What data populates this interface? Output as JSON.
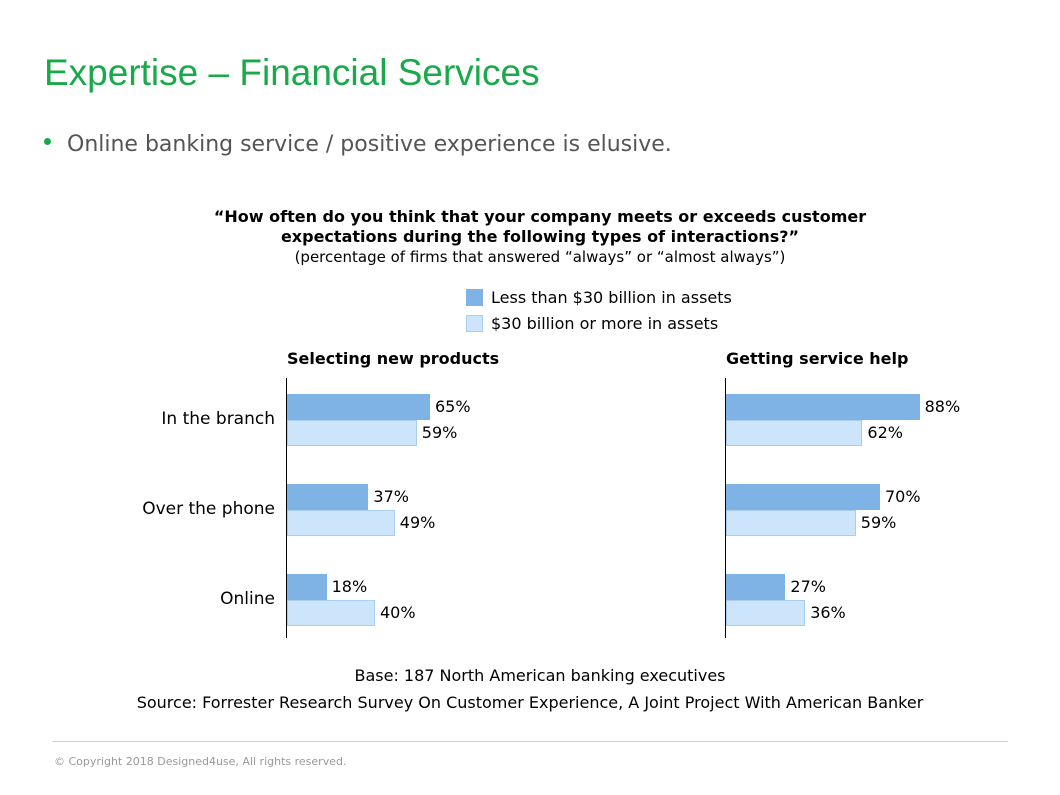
{
  "slide": {
    "title": "Expertise – Financial Services",
    "bullet": "Online banking service / positive experience is elusive."
  },
  "colors": {
    "title_green": "#1aa94a",
    "series_small": "#7fb2e5",
    "series_large": "#cce5fb",
    "series_large_border": "#a9cdee"
  },
  "chart_data": {
    "type": "bar",
    "orientation": "horizontal",
    "title_lines": [
      "“How often do you think that your company meets or exceeds customer",
      "expectations during the following types of interactions?”"
    ],
    "subtitle": "(percentage of firms that answered “always” or “almost always”)",
    "unit": "%",
    "legend": [
      "Less than $30 billion in assets",
      "$30 billion or more in assets"
    ],
    "legend_placement": "top-center",
    "categories": [
      "In the branch",
      "Over the phone",
      "Online"
    ],
    "xlim": [
      0,
      100
    ],
    "panels": [
      {
        "title": "Selecting new products",
        "series": [
          {
            "name": "Less than $30 billion in assets",
            "values": [
              65,
              37,
              18
            ]
          },
          {
            "name": "$30 billion or more in assets",
            "values": [
              59,
              49,
              40
            ]
          }
        ]
      },
      {
        "title": "Getting service help",
        "series": [
          {
            "name": "Less than $30 billion in assets",
            "values": [
              88,
              70,
              27
            ]
          },
          {
            "name": "$30 billion or more in assets",
            "values": [
              62,
              59,
              36
            ]
          }
        ]
      }
    ],
    "base": "Base: 187 North American banking executives",
    "source": "Source: Forrester Research Survey On Customer Experience, A Joint Project With American Banker"
  },
  "footer": {
    "copyright": "© Copyright 2018 Designed4use, All rights reserved."
  }
}
